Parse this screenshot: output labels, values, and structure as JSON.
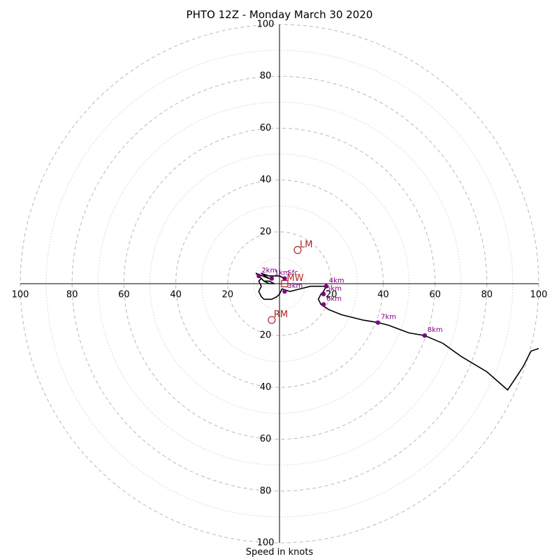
{
  "chart_data": {
    "type": "hodograph",
    "title": "PHTO 12Z - Monday March 30 2020",
    "xlabel": "Speed in knots",
    "ylabel": "",
    "rings": [
      10,
      20,
      30,
      40,
      50,
      60,
      70,
      80,
      90,
      100
    ],
    "ring_styles": {
      "even": "dashed",
      "odd": "dotted"
    },
    "max_speed": 100,
    "tick_labels": {
      "top": [
        "20",
        "40",
        "60",
        "80",
        "100"
      ],
      "bottom": [
        "20",
        "40",
        "60",
        "80",
        "100"
      ],
      "left": [
        "20",
        "40",
        "60",
        "80",
        "100"
      ],
      "right": [
        "20",
        "40",
        "60",
        "80",
        "100"
      ]
    },
    "trace": {
      "color": "#000000",
      "points": [
        [
          2,
          2
        ],
        [
          0,
          3
        ],
        [
          -4,
          3
        ],
        [
          -7,
          4
        ],
        [
          -4,
          2
        ],
        [
          -9,
          4
        ],
        [
          -6,
          1
        ],
        [
          -4,
          1
        ],
        [
          -2,
          0
        ],
        [
          -4,
          0
        ],
        [
          -6,
          1
        ],
        [
          -7,
          2
        ],
        [
          -8,
          1
        ],
        [
          -7,
          -1
        ],
        [
          -8,
          -3
        ],
        [
          -7,
          -5
        ],
        [
          -6,
          -6
        ],
        [
          -3,
          -6
        ],
        [
          -1,
          -5
        ],
        [
          0,
          -4
        ],
        [
          1,
          -2
        ],
        [
          4,
          -3
        ],
        [
          8,
          -2
        ],
        [
          12,
          -1
        ],
        [
          18,
          -1
        ],
        [
          17,
          -3
        ],
        [
          16,
          -4
        ],
        [
          15,
          -6
        ],
        [
          16,
          -8
        ],
        [
          19,
          -10
        ],
        [
          24,
          -12
        ],
        [
          32,
          -14
        ],
        [
          38,
          -15
        ],
        [
          42,
          -16
        ],
        [
          50,
          -19
        ],
        [
          56,
          -20
        ],
        [
          63,
          -23
        ],
        [
          70,
          -28
        ],
        [
          80,
          -34
        ],
        [
          88,
          -41
        ],
        [
          90,
          -38
        ],
        [
          94,
          -32
        ],
        [
          97,
          -26
        ],
        [
          100,
          -25
        ]
      ]
    },
    "height_markers": {
      "color": "#800080",
      "points": [
        {
          "label": "Sfc",
          "u": 2,
          "v": 2
        },
        {
          "label": "1km",
          "u": -3,
          "v": 2
        },
        {
          "label": "2km",
          "u": -8,
          "v": 3
        },
        {
          "label": "3km",
          "u": 2,
          "v": -3
        },
        {
          "label": "4km",
          "u": 18,
          "v": -1
        },
        {
          "label": "5km",
          "u": 17,
          "v": -4
        },
        {
          "label": "6km",
          "u": 17,
          "v": -8
        },
        {
          "label": "7km",
          "u": 38,
          "v": -15
        },
        {
          "label": "8km",
          "u": 56,
          "v": -20
        }
      ]
    },
    "motion_markers": {
      "color": "#b22222",
      "points": [
        {
          "label": "LM",
          "u": 7,
          "v": 13,
          "shape": "circle"
        },
        {
          "label": "RM",
          "u": -3,
          "v": -14,
          "shape": "circle"
        },
        {
          "label": "MW",
          "u": 2,
          "v": 0,
          "shape": "square"
        }
      ]
    },
    "grid": true,
    "legend": "none"
  }
}
